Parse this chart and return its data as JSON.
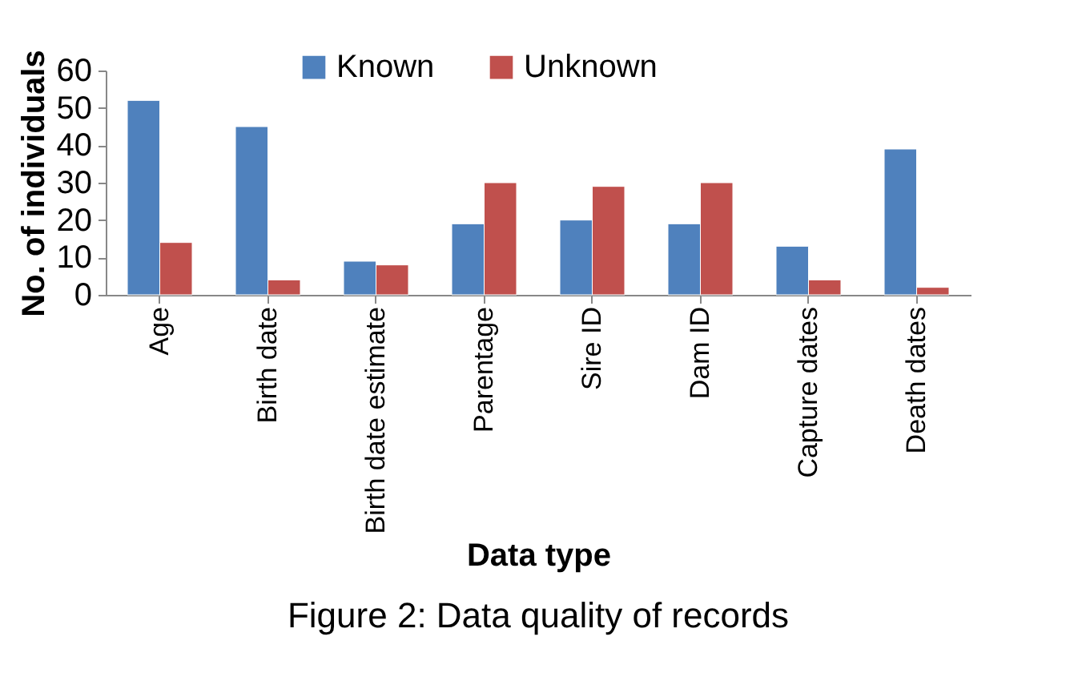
{
  "chart_data": {
    "type": "bar",
    "title": "Figure 2: Data quality of records",
    "xlabel": "Data type",
    "ylabel": "No. of individuals",
    "categories": [
      "Age",
      "Birth date",
      "Birth date estimate",
      "Parentage",
      "Sire ID",
      "Dam ID",
      "Capture dates",
      "Death dates"
    ],
    "series": [
      {
        "name": "Known",
        "color": "#4f81bd",
        "values": [
          52,
          45,
          9,
          19,
          20,
          19,
          13,
          39
        ]
      },
      {
        "name": "Unknown",
        "color": "#c0504d",
        "values": [
          14,
          4,
          8,
          30,
          29,
          30,
          4,
          2
        ]
      }
    ],
    "ylim": [
      0,
      60
    ],
    "yticks": [
      0,
      10,
      20,
      30,
      40,
      50,
      60
    ],
    "grid": false,
    "legend": "top"
  }
}
